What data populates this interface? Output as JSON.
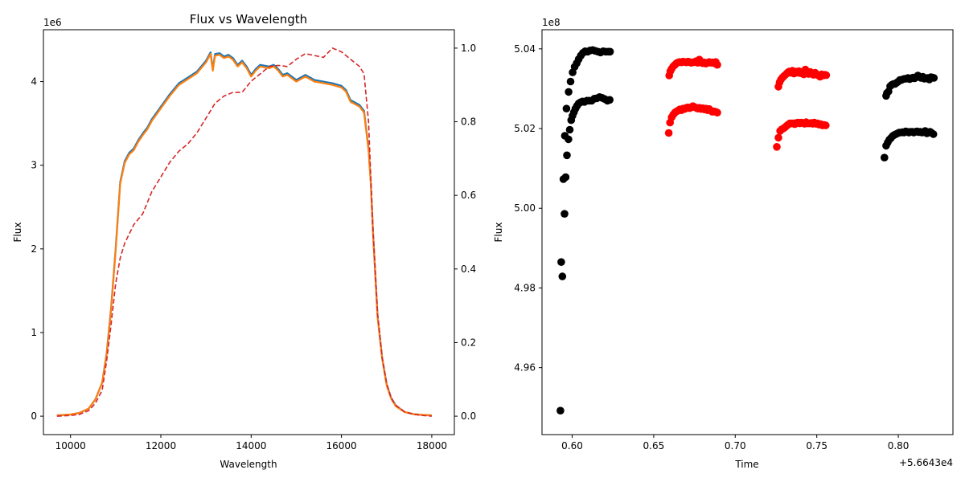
{
  "chart_data": [
    {
      "type": "line",
      "title": "Flux vs Wavelength",
      "xlabel": "Wavelength",
      "ylabel": "Flux",
      "y_offset_label": "1e6",
      "xlim": [
        9400,
        18500
      ],
      "ylim": [
        -0.22,
        4.62
      ],
      "xticks": [
        10000,
        12000,
        14000,
        16000,
        18000
      ],
      "xtick_labels": [
        "10000",
        "12000",
        "14000",
        "16000",
        "18000"
      ],
      "yticks": [
        0,
        1,
        2,
        3,
        4
      ],
      "ytick_labels": [
        "0",
        "1",
        "2",
        "3",
        "4"
      ],
      "y2lim": [
        -0.05,
        1.05
      ],
      "y2ticks": [
        0.0,
        0.2,
        0.4,
        0.6,
        0.8,
        1.0
      ],
      "y2tick_labels": [
        "0.0",
        "0.2",
        "0.4",
        "0.6",
        "0.8",
        "1.0"
      ],
      "grid": false,
      "series": [
        {
          "color": "#1f77b4",
          "style": "solid",
          "axis": "left",
          "x": [
            9700,
            10000,
            10200,
            10400,
            10550,
            10700,
            10800,
            10900,
            11000,
            11100,
            11200,
            11300,
            11400,
            11500,
            11600,
            11700,
            11800,
            12000,
            12200,
            12400,
            12600,
            12800,
            13000,
            13100,
            13150,
            13200,
            13300,
            13400,
            13500,
            13600,
            13700,
            13800,
            13900,
            14000,
            14100,
            14200,
            14400,
            14500,
            14600,
            14700,
            14800,
            15000,
            15200,
            15400,
            15600,
            15800,
            16000,
            16100,
            16200,
            16300,
            16400,
            16500,
            16600,
            16650,
            16700,
            16800,
            16900,
            17000,
            17100,
            17200,
            17400,
            17600,
            17800,
            18000
          ],
          "y": [
            0.01,
            0.02,
            0.04,
            0.09,
            0.2,
            0.4,
            0.75,
            1.3,
            2.0,
            2.8,
            3.05,
            3.15,
            3.2,
            3.3,
            3.38,
            3.45,
            3.55,
            3.7,
            3.85,
            3.98,
            4.05,
            4.12,
            4.25,
            4.35,
            4.15,
            4.33,
            4.34,
            4.3,
            4.32,
            4.28,
            4.2,
            4.25,
            4.18,
            4.08,
            4.15,
            4.2,
            4.18,
            4.2,
            4.15,
            4.08,
            4.1,
            4.02,
            4.08,
            4.02,
            4.0,
            3.98,
            3.95,
            3.9,
            3.78,
            3.75,
            3.72,
            3.65,
            3.2,
            2.8,
            2.2,
            1.2,
            0.7,
            0.38,
            0.22,
            0.13,
            0.05,
            0.025,
            0.015,
            0.01
          ]
        },
        {
          "color": "#ff7f0e",
          "style": "solid",
          "axis": "left",
          "x": [
            9700,
            10000,
            10200,
            10400,
            10550,
            10700,
            10800,
            10900,
            11000,
            11100,
            11200,
            11300,
            11400,
            11500,
            11600,
            11700,
            11800,
            12000,
            12200,
            12400,
            12600,
            12800,
            13000,
            13100,
            13150,
            13200,
            13300,
            13400,
            13500,
            13600,
            13700,
            13800,
            13900,
            14000,
            14100,
            14200,
            14400,
            14500,
            14600,
            14700,
            14800,
            15000,
            15200,
            15400,
            15600,
            15800,
            16000,
            16100,
            16200,
            16300,
            16400,
            16500,
            16600,
            16650,
            16700,
            16800,
            16900,
            17000,
            17100,
            17200,
            17400,
            17600,
            17800,
            18000
          ],
          "y": [
            0.01,
            0.02,
            0.04,
            0.09,
            0.2,
            0.4,
            0.74,
            1.28,
            1.98,
            2.78,
            3.03,
            3.13,
            3.18,
            3.28,
            3.36,
            3.43,
            3.53,
            3.68,
            3.83,
            3.96,
            4.03,
            4.1,
            4.23,
            4.33,
            4.13,
            4.31,
            4.32,
            4.28,
            4.3,
            4.26,
            4.18,
            4.23,
            4.16,
            4.06,
            4.13,
            4.18,
            4.16,
            4.18,
            4.13,
            4.06,
            4.08,
            4.0,
            4.06,
            4.0,
            3.98,
            3.96,
            3.93,
            3.88,
            3.76,
            3.73,
            3.7,
            3.63,
            3.18,
            2.78,
            2.18,
            1.19,
            0.69,
            0.37,
            0.21,
            0.12,
            0.05,
            0.025,
            0.015,
            0.01
          ]
        },
        {
          "color": "#d62728",
          "style": "dashed",
          "axis": "right",
          "x": [
            9700,
            10000,
            10200,
            10400,
            10550,
            10700,
            10800,
            10900,
            11000,
            11100,
            11200,
            11400,
            11600,
            11800,
            12000,
            12200,
            12400,
            12600,
            12800,
            13000,
            13200,
            13400,
            13600,
            13800,
            14000,
            14200,
            14400,
            14600,
            14800,
            15000,
            15200,
            15400,
            15600,
            15800,
            16000,
            16200,
            16400,
            16500,
            16600,
            16650,
            16700,
            16800,
            16900,
            17000,
            17100,
            17200,
            17400,
            17600,
            17800,
            18000
          ],
          "y": [
            0.0,
            0.002,
            0.005,
            0.015,
            0.035,
            0.07,
            0.15,
            0.25,
            0.36,
            0.43,
            0.47,
            0.52,
            0.55,
            0.61,
            0.65,
            0.69,
            0.72,
            0.74,
            0.77,
            0.81,
            0.85,
            0.87,
            0.88,
            0.88,
            0.91,
            0.93,
            0.95,
            0.953,
            0.95,
            0.97,
            0.985,
            0.98,
            0.975,
            1.0,
            0.99,
            0.97,
            0.95,
            0.93,
            0.8,
            0.65,
            0.5,
            0.28,
            0.16,
            0.09,
            0.05,
            0.03,
            0.012,
            0.005,
            0.002,
            0.0
          ]
        }
      ]
    },
    {
      "type": "scatter",
      "xlabel": "Time",
      "ylabel": "Flux",
      "y_offset_label": "1e8",
      "x_offset_label": "+5.6643e4",
      "xlim": [
        0.5815,
        0.8335
      ],
      "ylim": [
        4.9432,
        5.0448
      ],
      "xticks": [
        0.6,
        0.65,
        0.7,
        0.75,
        0.8
      ],
      "xtick_labels": [
        "0.60",
        "0.65",
        "0.70",
        "0.75",
        "0.80"
      ],
      "yticks": [
        4.96,
        4.98,
        5.0,
        5.02,
        5.04
      ],
      "ytick_labels": [
        "4.96",
        "4.98",
        "5.00",
        "5.02",
        "5.04"
      ],
      "grid": false,
      "series": [
        {
          "color": "#000000",
          "x": [
            0.5928,
            0.5933,
            0.594,
            0.5946,
            0.5953,
            0.596,
            0.5968,
            0.5977,
            0.5985,
            0.5994,
            0.6002,
            0.6011,
            0.602,
            0.603,
            0.604,
            0.6051,
            0.6063,
            0.6076,
            0.609,
            0.6105,
            0.612,
            0.6136,
            0.6152,
            0.6168,
            0.6184,
            0.62,
            0.6216,
            0.623
          ],
          "y": [
            4.9492,
            4.9865,
            4.9829,
            5.0073,
            4.9986,
            5.0078,
            5.0133,
            5.0173,
            5.0197,
            5.0221,
            5.0232,
            5.0241,
            5.025,
            5.0257,
            5.0263,
            5.0266,
            5.0268,
            5.0267,
            5.027,
            5.027,
            5.027,
            5.0275,
            5.0276,
            5.0279,
            5.0277,
            5.0274,
            5.027,
            5.0272
          ]
        },
        {
          "color": "#000000",
          "x": [
            0.5955,
            0.5965,
            0.5978,
            0.599,
            0.6003,
            0.6015,
            0.6028,
            0.604,
            0.6053,
            0.6066,
            0.608,
            0.6095,
            0.611,
            0.6126,
            0.6142,
            0.6158,
            0.6174,
            0.619,
            0.6206,
            0.6222,
            0.6232
          ],
          "y": [
            5.0182,
            5.025,
            5.0292,
            5.0318,
            5.0341,
            5.0355,
            5.0364,
            5.0374,
            5.0383,
            5.039,
            5.0394,
            5.0393,
            5.0396,
            5.0397,
            5.0395,
            5.0393,
            5.0391,
            5.0394,
            5.0393,
            5.0393,
            5.0393
          ]
        },
        {
          "color": "#ff0000",
          "x": [
            0.6595,
            0.6602,
            0.661,
            0.662,
            0.663,
            0.664,
            0.665,
            0.666,
            0.667,
            0.668,
            0.669,
            0.67,
            0.671,
            0.672,
            0.673,
            0.674,
            0.675,
            0.676,
            0.677,
            0.678,
            0.679,
            0.68,
            0.681,
            0.682,
            0.683,
            0.684,
            0.685,
            0.686,
            0.687,
            0.688,
            0.689
          ],
          "y": [
            5.0333,
            5.0344,
            5.035,
            5.0356,
            5.036,
            5.0364,
            5.0366,
            5.0367,
            5.0366,
            5.0368,
            5.0367,
            5.0366,
            5.0368,
            5.0367,
            5.0365,
            5.0366,
            5.0367,
            5.0369,
            5.0365,
            5.0373,
            5.0367,
            5.0364,
            5.0366,
            5.0363,
            5.0365,
            5.0367,
            5.0365,
            5.0366,
            5.0364,
            5.0367,
            5.036
          ]
        },
        {
          "color": "#ff0000",
          "x": [
            0.6592,
            0.66,
            0.661,
            0.662,
            0.663,
            0.664,
            0.665,
            0.666,
            0.667,
            0.668,
            0.669,
            0.67,
            0.671,
            0.672,
            0.673,
            0.674,
            0.675,
            0.676,
            0.677,
            0.678,
            0.679,
            0.68,
            0.681,
            0.682,
            0.683,
            0.684,
            0.685,
            0.686,
            0.687,
            0.688,
            0.689
          ],
          "y": [
            5.0189,
            5.0215,
            5.0228,
            5.0235,
            5.024,
            5.0243,
            5.0245,
            5.0248,
            5.0246,
            5.025,
            5.0249,
            5.0252,
            5.0253,
            5.0251,
            5.0253,
            5.0256,
            5.0254,
            5.0252,
            5.025,
            5.0252,
            5.0249,
            5.0251,
            5.0248,
            5.025,
            5.0246,
            5.0249,
            5.0245,
            5.0242,
            5.0243,
            5.0242,
            5.024
          ]
        },
        {
          "color": "#ff0000",
          "x": [
            0.7265,
            0.7272,
            0.728,
            0.729,
            0.73,
            0.731,
            0.732,
            0.733,
            0.734,
            0.735,
            0.736,
            0.737,
            0.738,
            0.739,
            0.74,
            0.741,
            0.742,
            0.743,
            0.744,
            0.745,
            0.746,
            0.747,
            0.748,
            0.749,
            0.75,
            0.751,
            0.752,
            0.753,
            0.754,
            0.755,
            0.7558
          ],
          "y": [
            5.0305,
            5.0316,
            5.0323,
            5.0328,
            5.0332,
            5.0336,
            5.034,
            5.0343,
            5.034,
            5.0345,
            5.0338,
            5.0343,
            5.034,
            5.0344,
            5.0339,
            5.0342,
            5.0336,
            5.0348,
            5.034,
            5.0337,
            5.0342,
            5.0338,
            5.0335,
            5.034,
            5.0336,
            5.0333,
            5.033,
            5.0336,
            5.0333,
            5.0335,
            5.0334
          ]
        },
        {
          "color": "#ff0000",
          "x": [
            0.7255,
            0.7265,
            0.7275,
            0.7285,
            0.7295,
            0.7305,
            0.7315,
            0.7325,
            0.7335,
            0.7345,
            0.7355,
            0.7365,
            0.7375,
            0.7385,
            0.7395,
            0.7405,
            0.7415,
            0.7425,
            0.7435,
            0.7445,
            0.7455,
            0.7465,
            0.7475,
            0.7485,
            0.7495,
            0.7505,
            0.7515,
            0.7525,
            0.7535,
            0.7545,
            0.7555
          ],
          "y": [
            5.0154,
            5.0177,
            5.0194,
            5.0198,
            5.02,
            5.0203,
            5.0207,
            5.021,
            5.0213,
            5.0213,
            5.0213,
            5.0211,
            5.0214,
            5.0215,
            5.0213,
            5.0215,
            5.0214,
            5.0212,
            5.0216,
            5.0213,
            5.0213,
            5.0214,
            5.0212,
            5.0215,
            5.0212,
            5.0213,
            5.021,
            5.0211,
            5.0208,
            5.0209,
            5.0208
          ]
        },
        {
          "color": "#000000",
          "x": [
            0.7925,
            0.793,
            0.794,
            0.795,
            0.796,
            0.797,
            0.798,
            0.799,
            0.8,
            0.801,
            0.802,
            0.803,
            0.804,
            0.805,
            0.806,
            0.807,
            0.808,
            0.809,
            0.81,
            0.811,
            0.812,
            0.813,
            0.814,
            0.815,
            0.816,
            0.817,
            0.818,
            0.819,
            0.82,
            0.821,
            0.8218
          ],
          "y": [
            5.0282,
            5.0289,
            5.0293,
            5.0306,
            5.031,
            5.0312,
            5.0312,
            5.0315,
            5.0318,
            5.0322,
            5.0322,
            5.0324,
            5.0325,
            5.0325,
            5.0327,
            5.0324,
            5.0326,
            5.0328,
            5.0326,
            5.0329,
            5.0333,
            5.0329,
            5.0327,
            5.033,
            5.0325,
            5.0326,
            5.0327,
            5.0323,
            5.0329,
            5.0328,
            5.0327
          ]
        },
        {
          "color": "#000000",
          "x": [
            0.7915,
            0.7925,
            0.7935,
            0.7945,
            0.7955,
            0.7965,
            0.7975,
            0.7985,
            0.7995,
            0.8005,
            0.8015,
            0.8025,
            0.8035,
            0.8045,
            0.8055,
            0.8065,
            0.8075,
            0.8085,
            0.8095,
            0.8105,
            0.8115,
            0.8125,
            0.8135,
            0.8145,
            0.8155,
            0.8165,
            0.8175,
            0.8185,
            0.8195,
            0.8205,
            0.8215
          ],
          "y": [
            5.0127,
            5.0157,
            5.0165,
            5.0172,
            5.0176,
            5.0181,
            5.0184,
            5.0186,
            5.0188,
            5.019,
            5.019,
            5.0191,
            5.019,
            5.0193,
            5.0192,
            5.019,
            5.0192,
            5.0192,
            5.019,
            5.0192,
            5.0193,
            5.0191,
            5.0192,
            5.019,
            5.0191,
            5.0194,
            5.0188,
            5.019,
            5.0192,
            5.0189,
            5.0186
          ]
        }
      ]
    }
  ]
}
